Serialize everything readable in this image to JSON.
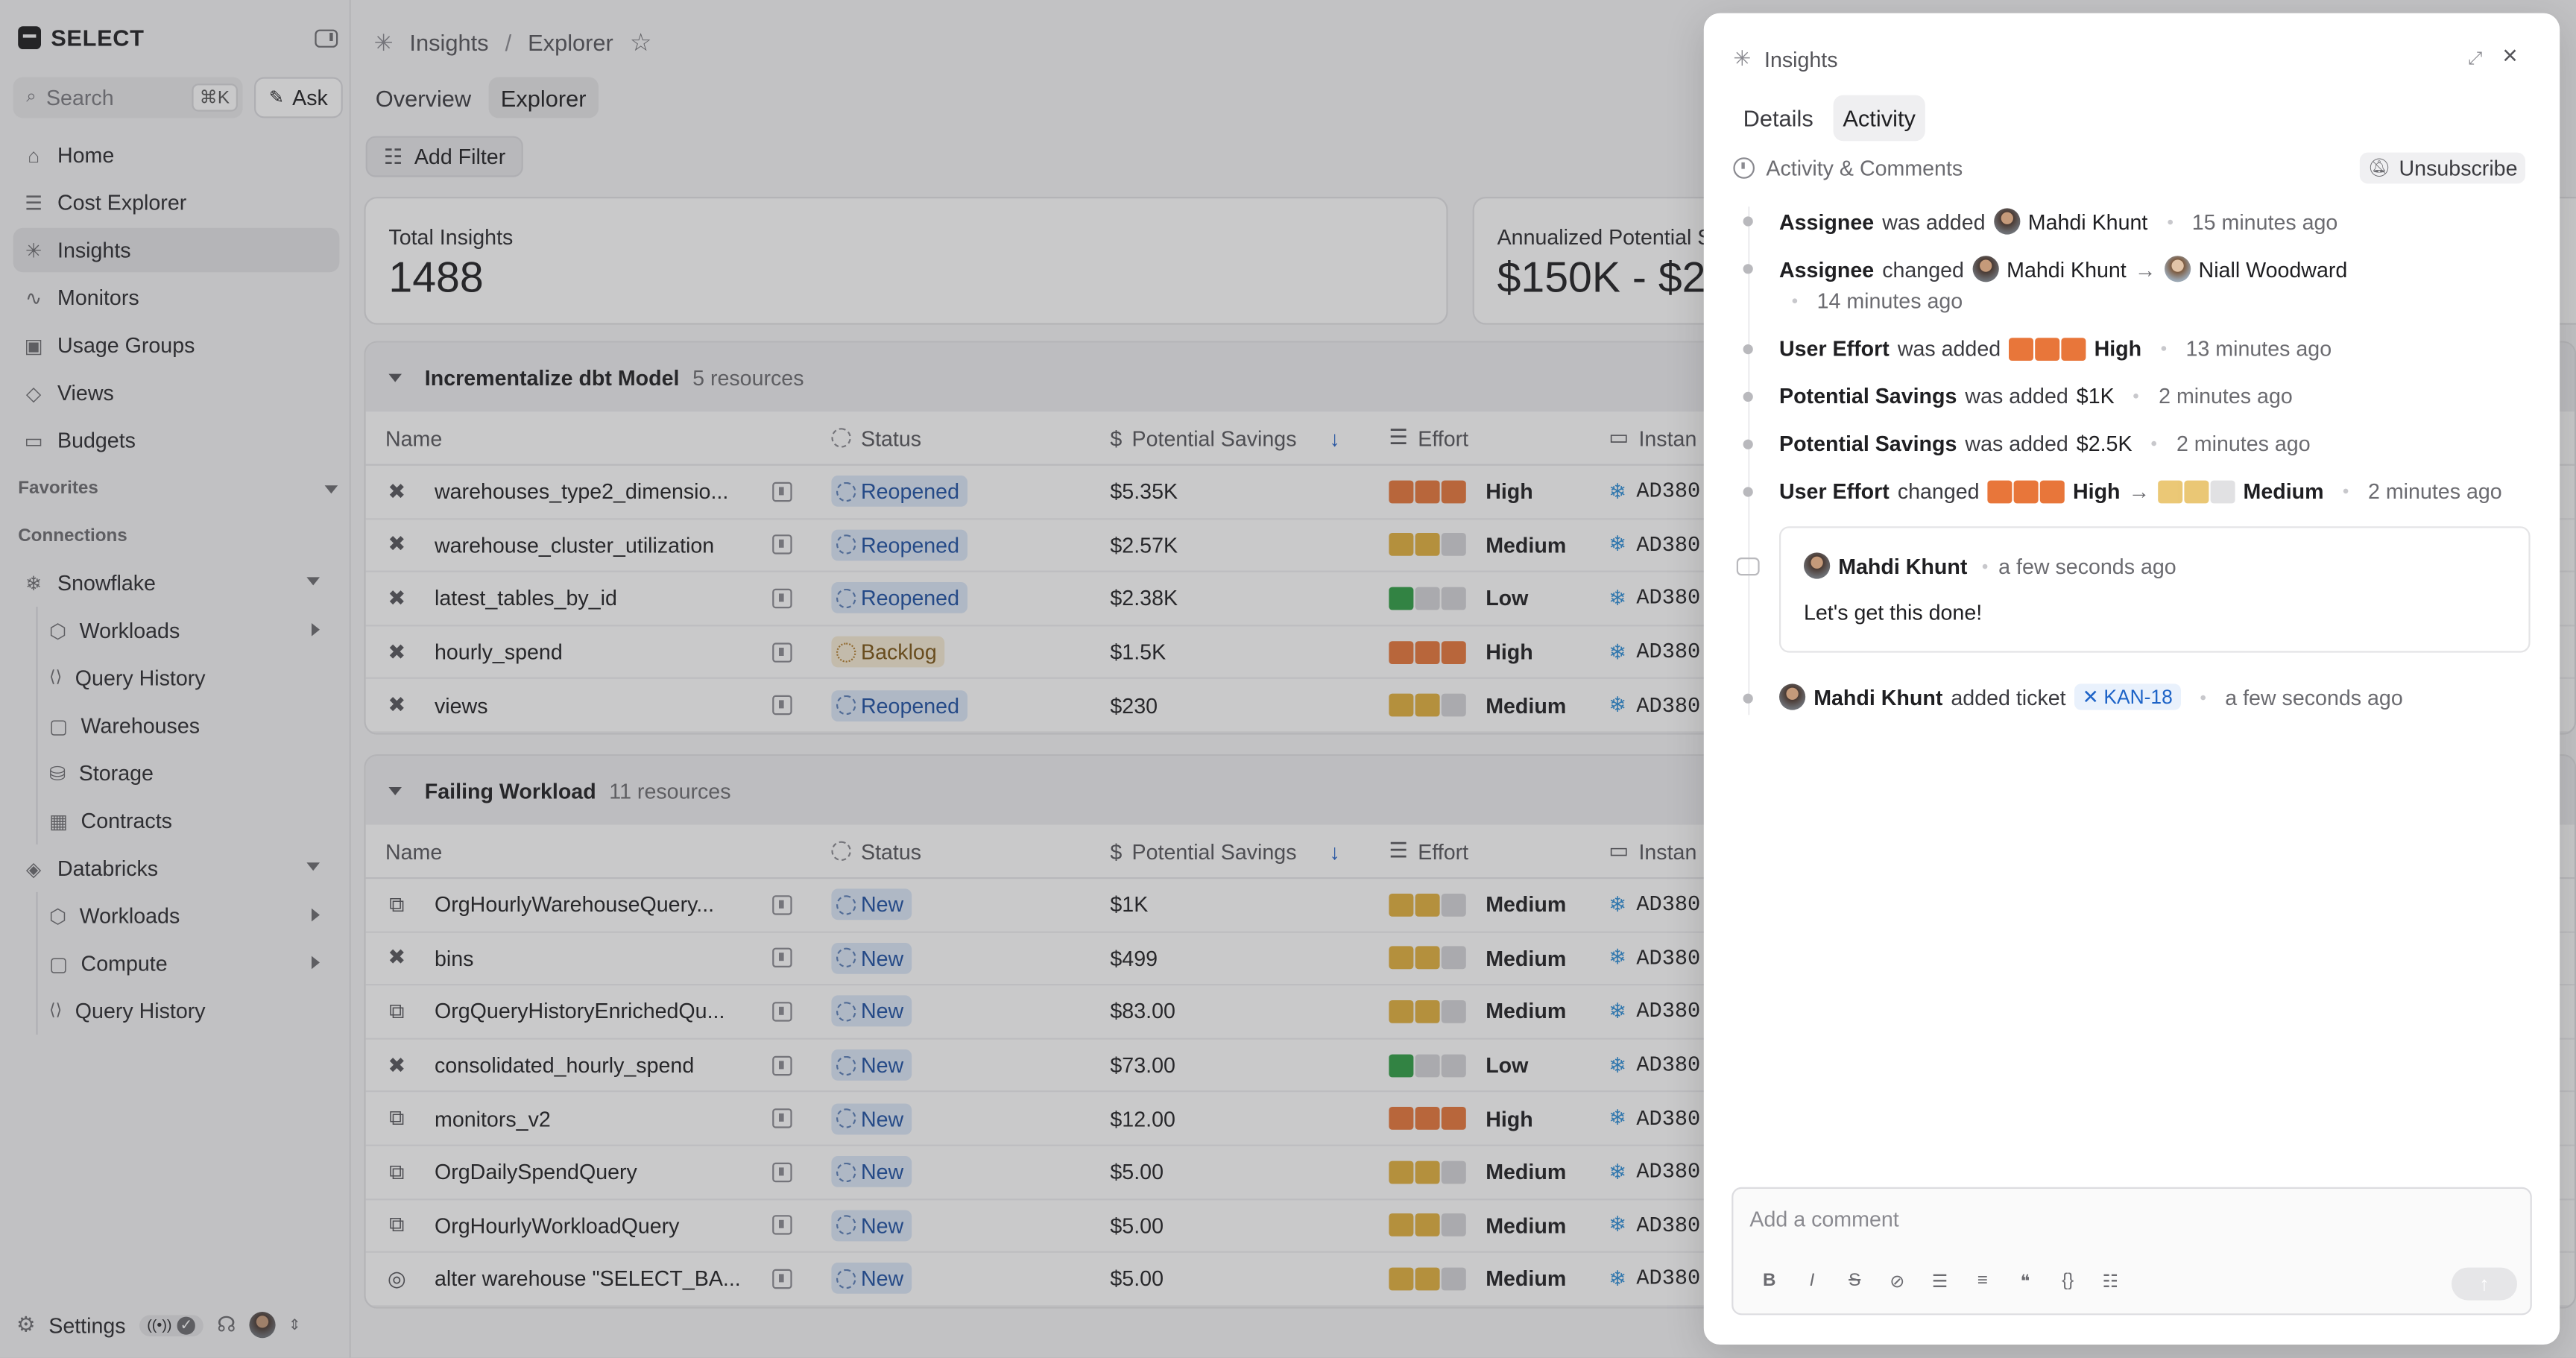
{
  "app": {
    "brand": "SELECT"
  },
  "sidebar": {
    "search_placeholder": "Search",
    "search_shortcut": "⌘K",
    "ask_label": "Ask",
    "nav": [
      {
        "label": "Home",
        "icon": "home-icon"
      },
      {
        "label": "Cost Explorer",
        "icon": "cost-explorer-icon"
      },
      {
        "label": "Insights",
        "icon": "insights-icon",
        "active": true
      },
      {
        "label": "Monitors",
        "icon": "monitors-icon"
      },
      {
        "label": "Usage Groups",
        "icon": "usage-groups-icon"
      },
      {
        "label": "Views",
        "icon": "views-icon"
      },
      {
        "label": "Budgets",
        "icon": "budgets-icon"
      }
    ],
    "favorites_label": "Favorites",
    "connections_label": "Connections",
    "snowflake": {
      "label": "Snowflake",
      "items": [
        "Workloads",
        "Query History",
        "Warehouses",
        "Storage",
        "Contracts"
      ]
    },
    "databricks": {
      "label": "Databricks",
      "items": [
        "Workloads",
        "Compute",
        "Query History"
      ]
    },
    "settings_label": "Settings"
  },
  "main": {
    "breadcrumb": [
      "Insights",
      "Explorer"
    ],
    "tabs": [
      "Overview",
      "Explorer"
    ],
    "active_tab": "Explorer",
    "add_filter_label": "Add Filter",
    "stats": [
      {
        "label": "Total Insights",
        "value": "1488"
      },
      {
        "label": "Annualized Potential S",
        "value": "$150K - $2"
      }
    ],
    "columns": [
      "Name",
      "Status",
      "Potential Savings",
      "Effort",
      "Instan"
    ],
    "groups": [
      {
        "title": "Incrementalize dbt Model",
        "count": "5 resources",
        "rows": [
          {
            "name": "warehouses_type2_dimensio...",
            "icon": "dbt-icon",
            "status": "Reopened",
            "savings": "$5.35K",
            "effort": "High",
            "instance": "AD380"
          },
          {
            "name": "warehouse_cluster_utilization",
            "icon": "dbt-icon",
            "status": "Reopened",
            "savings": "$2.57K",
            "effort": "Medium",
            "instance": "AD380"
          },
          {
            "name": "latest_tables_by_id",
            "icon": "dbt-icon",
            "status": "Reopened",
            "savings": "$2.38K",
            "effort": "Low",
            "instance": "AD380"
          },
          {
            "name": "hourly_spend",
            "icon": "dbt-icon",
            "status": "Backlog",
            "savings": "$1.5K",
            "effort": "High",
            "instance": "AD380"
          },
          {
            "name": "views",
            "icon": "dbt-icon",
            "status": "Reopened",
            "savings": "$230",
            "effort": "Medium",
            "instance": "AD380"
          }
        ]
      },
      {
        "title": "Failing Workload",
        "count": "11 resources",
        "rows": [
          {
            "name": "OrgHourlyWarehouseQuery...",
            "icon": "workload-icon",
            "status": "New",
            "savings": "$1K",
            "effort": "Medium",
            "instance": "AD380"
          },
          {
            "name": "bins",
            "icon": "dbt-icon",
            "status": "New",
            "savings": "$499",
            "effort": "Medium",
            "instance": "AD380"
          },
          {
            "name": "OrgQueryHistoryEnrichedQu...",
            "icon": "workload-icon",
            "status": "New",
            "savings": "$83.00",
            "effort": "Medium",
            "instance": "AD380"
          },
          {
            "name": "consolidated_hourly_spend",
            "icon": "dbt-icon",
            "status": "New",
            "savings": "$73.00",
            "effort": "Low",
            "instance": "AD380"
          },
          {
            "name": "monitors_v2",
            "icon": "workload-icon",
            "status": "New",
            "savings": "$12.00",
            "effort": "High",
            "instance": "AD380"
          },
          {
            "name": "OrgDailySpendQuery",
            "icon": "workload-icon",
            "status": "New",
            "savings": "$5.00",
            "effort": "Medium",
            "instance": "AD380"
          },
          {
            "name": "OrgHourlyWorkloadQuery",
            "icon": "workload-icon",
            "status": "New",
            "savings": "$5.00",
            "effort": "Medium",
            "instance": "AD380"
          },
          {
            "name": "alter warehouse \"SELECT_BA...",
            "icon": "fingerprint-icon",
            "status": "New",
            "savings": "$5.00",
            "effort": "Medium",
            "instance": "AD380"
          }
        ]
      }
    ]
  },
  "panel": {
    "title": "Insights",
    "tabs": [
      "Details",
      "Activity"
    ],
    "active_tab": "Activity",
    "activity_heading": "Activity & Comments",
    "unsubscribe_label": "Unsubscribe",
    "events": {
      "e1": {
        "field": "Assignee",
        "verb": "was added",
        "user": "Mahdi Khunt",
        "time": "15 minutes ago"
      },
      "e2": {
        "field": "Assignee",
        "verb": "changed",
        "from": "Mahdi Khunt",
        "to": "Niall Woodward",
        "time": "14 minutes ago"
      },
      "e3": {
        "field": "User Effort",
        "verb": "was added",
        "value": "High",
        "time": "13 minutes ago"
      },
      "e4": {
        "field": "Potential Savings",
        "verb": "was added",
        "value": "$1K",
        "time": "2 minutes ago"
      },
      "e5": {
        "field": "Potential Savings",
        "verb": "was added",
        "value": "$2.5K",
        "time": "2 minutes ago"
      },
      "e6": {
        "field": "User Effort",
        "verb": "changed",
        "from": "High",
        "to": "Medium",
        "time": "2 minutes ago"
      },
      "comment": {
        "user": "Mahdi Khunt",
        "time": "a few seconds ago",
        "text": "Let's get this done!"
      },
      "e7": {
        "user": "Mahdi Khunt",
        "verb": "added ticket",
        "ticket": "KAN-18",
        "time": "a few seconds ago"
      }
    },
    "composer_placeholder": "Add a comment"
  },
  "colors": {
    "effort_high": "#e8763a",
    "effort_medium": "#e2b03c",
    "effort_low": "#2f9e44",
    "effort_empty": "#d5d5d8",
    "status_new_bg": "#dce8f8",
    "status_backlog_bg": "#f7ecd5",
    "snowflake": "#2f8fd8",
    "ticket": "#1d63c7"
  }
}
